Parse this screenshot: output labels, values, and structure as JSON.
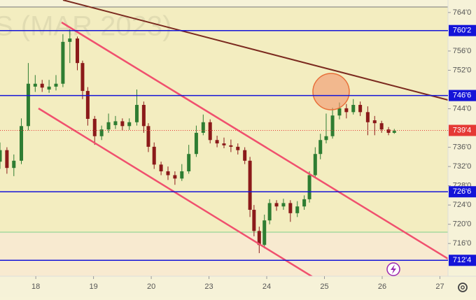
{
  "chart_data": {
    "type": "candlestick",
    "watermark": "S (MAR 2023)",
    "x": [
      -0.62,
      -0.5,
      -0.38,
      -0.25,
      -0.13,
      -0.01,
      0.11,
      0.23,
      0.35,
      0.47,
      0.59,
      0.72,
      0.81,
      0.9,
      1.02,
      1.14,
      1.26,
      1.38,
      1.5,
      1.62,
      1.75,
      1.87,
      1.95,
      2.05,
      2.17,
      2.29,
      2.41,
      2.53,
      2.65,
      2.78,
      2.9,
      3.02,
      3.14,
      3.26,
      3.38,
      3.5,
      3.62,
      3.71,
      3.78,
      3.87,
      3.96,
      4.05,
      4.17,
      4.29,
      4.41,
      4.53,
      4.65,
      4.74,
      4.84,
      4.93,
      5.03,
      5.14,
      5.26,
      5.38,
      5.5,
      5.62,
      5.75,
      5.87,
      5.99,
      6.11,
      6.21
    ],
    "open": [
      733.0,
      735.4,
      731.7,
      733.2,
      740.4,
      748.6,
      749.2,
      748.0,
      748.6,
      749.2,
      757.9,
      758.6,
      753.5,
      747.7,
      741.9,
      738.3,
      739.7,
      740.6,
      741.4,
      740.4,
      741.2,
      744.8,
      740.4,
      736.1,
      732.4,
      731.0,
      730.2,
      729.5,
      731.0,
      734.6,
      739.0,
      741.2,
      737.5,
      736.8,
      736.4,
      736.1,
      735.4,
      733.2,
      723.0,
      718.6,
      715.7,
      720.8,
      724.4,
      723.7,
      724.4,
      722.3,
      723.7,
      725.2,
      730.2,
      734.6,
      737.5,
      738.3,
      742.6,
      744.1,
      743.3,
      744.8,
      743.3,
      741.6,
      741.0,
      739.7,
      739.0
    ],
    "high": [
      737.0,
      736.0,
      734.5,
      742.0,
      753.5,
      751.0,
      750.0,
      750.0,
      751.0,
      759.5,
      760.5,
      759.0,
      754.0,
      748.5,
      742.5,
      740.5,
      743.0,
      742.5,
      742.0,
      742.0,
      748.0,
      745.5,
      741.0,
      737.0,
      733.0,
      732.0,
      731.0,
      732.5,
      736.5,
      740.5,
      742.8,
      741.8,
      738.4,
      738.0,
      737.6,
      736.8,
      736.0,
      734.0,
      724.0,
      719.5,
      722.0,
      725.2,
      725.0,
      725.3,
      725.0,
      724.8,
      726.0,
      731.0,
      736.0,
      738.8,
      743.0,
      744.2,
      745.3,
      745.0,
      746.0,
      745.5,
      744.5,
      742.5,
      741.5,
      740.2,
      739.8
    ],
    "low": [
      731.5,
      730.5,
      730.0,
      732.5,
      739.5,
      747.5,
      747.5,
      747.3,
      747.8,
      748.5,
      753.5,
      752.0,
      746.0,
      740.5,
      736.5,
      737.5,
      739.0,
      739.8,
      739.5,
      739.6,
      740.5,
      739.0,
      735.0,
      731.5,
      730.2,
      729.2,
      728.2,
      729.0,
      730.5,
      734.0,
      738.5,
      736.8,
      736.0,
      735.8,
      735.0,
      734.5,
      732.5,
      721.5,
      717.5,
      714.0,
      715.0,
      720.0,
      722.8,
      723.0,
      720.5,
      721.5,
      723.0,
      724.5,
      729.8,
      733.5,
      736.8,
      737.8,
      741.8,
      742.0,
      742.8,
      742.5,
      738.5,
      738.5,
      739.0,
      738.5,
      738.8
    ],
    "close": [
      735.4,
      731.7,
      733.2,
      740.4,
      749.2,
      749.2,
      748.4,
      748.6,
      749.2,
      757.9,
      758.6,
      753.5,
      747.7,
      741.9,
      738.3,
      739.7,
      741.2,
      741.4,
      740.4,
      741.2,
      744.8,
      740.4,
      736.1,
      732.4,
      731.0,
      730.2,
      729.5,
      731.0,
      734.6,
      739.0,
      741.2,
      737.5,
      736.8,
      736.4,
      736.1,
      735.4,
      733.2,
      723.0,
      718.6,
      715.7,
      720.8,
      724.4,
      723.7,
      724.4,
      722.3,
      723.7,
      725.2,
      730.2,
      734.6,
      737.5,
      738.3,
      742.6,
      744.1,
      743.3,
      744.8,
      743.3,
      741.2,
      741.0,
      739.7,
      739.0,
      739.4
    ],
    "up_color": "#2e7d32",
    "down_color": "#8b1a1a",
    "xlim": [
      -0.62,
      7.14
    ],
    "xticks": [
      {
        "value": 0,
        "label": "18"
      },
      {
        "value": 1,
        "label": "19"
      },
      {
        "value": 2,
        "label": "20"
      },
      {
        "value": 3,
        "label": "23"
      },
      {
        "value": 4,
        "label": "24"
      },
      {
        "value": 5,
        "label": "25"
      },
      {
        "value": 6,
        "label": "26"
      },
      {
        "value": 7,
        "label": "27"
      }
    ],
    "ylim": [
      709.2,
      766.6
    ],
    "yticks": [
      {
        "value": 764,
        "label": "764'0"
      },
      {
        "value": 756,
        "label": "756'0"
      },
      {
        "value": 752,
        "label": "752'0"
      },
      {
        "value": 744,
        "label": "744'0"
      },
      {
        "value": 736,
        "label": "736'0"
      },
      {
        "value": 732,
        "label": "732'0"
      },
      {
        "value": 728,
        "label": "728'0"
      },
      {
        "value": 724,
        "label": "724'0"
      },
      {
        "value": 720,
        "label": "720'0"
      },
      {
        "value": 716,
        "label": "716'0"
      }
    ],
    "levels": [
      {
        "value": 760.25,
        "label": "760'2"
      },
      {
        "value": 746.75,
        "label": "746'6"
      },
      {
        "value": 726.75,
        "label": "726'6"
      },
      {
        "value": 712.5,
        "label": "712'4"
      }
    ],
    "level_color": "#1414d8",
    "last_price": {
      "value": 739.5,
      "label": "739'4"
    },
    "last_color": "#e53935"
  }
}
